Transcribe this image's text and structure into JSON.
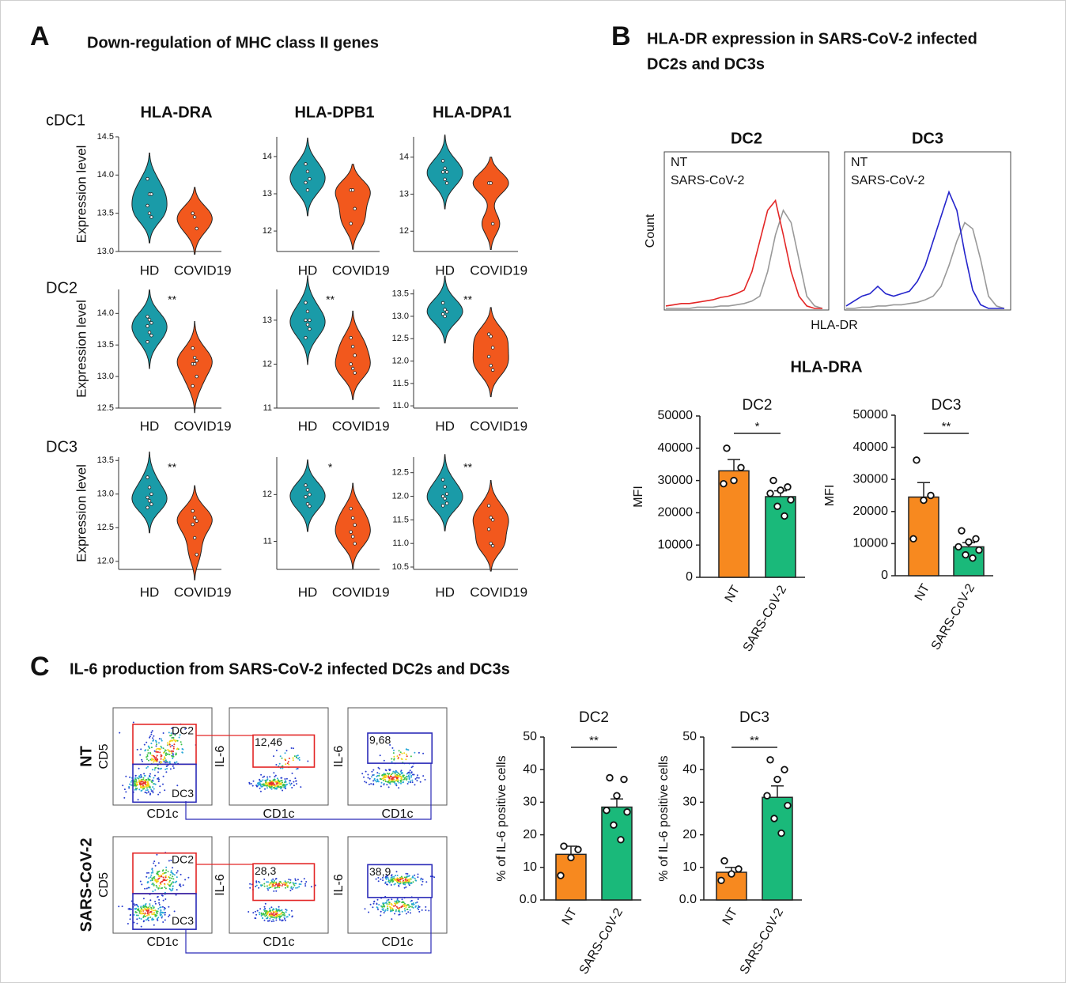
{
  "panels": [
    {
      "letter": "A",
      "title": "Down-regulation of MHC class II genes"
    },
    {
      "letter": "B",
      "title_lines": [
        "HLA-DR expression in SARS-CoV-2 infected",
        "DC2s and DC3s"
      ],
      "subtitle": "HLA-DRA",
      "xlabel": "HLA-DR"
    },
    {
      "letter": "C",
      "title": "IL-6 production from SARS-CoV-2 infected DC2s and DC3s"
    }
  ],
  "chart_data": [
    {
      "type": "violin",
      "title": "HLA-DRA",
      "row_label": "cDC1",
      "ylabel": "Expression level",
      "categories": [
        "HD",
        "COVID19"
      ],
      "colors": [
        "#1a9ba8",
        "#f2581d"
      ],
      "points": [
        [
          13.95,
          13.75,
          13.75,
          13.6,
          13.5,
          13.45
        ],
        [
          13.5,
          13.45,
          13.3
        ]
      ],
      "ylim": [
        13.0,
        14.5
      ],
      "yticks": [
        {
          "value": 13,
          "label": "13.0"
        },
        13.5,
        {
          "value": 14,
          "label": "14.0"
        },
        14.5
      ]
    },
    {
      "type": "violin",
      "title": "HLA-DPB1",
      "categories": [
        "HD",
        "COVID19"
      ],
      "colors": [
        "#1a9ba8",
        "#f2581d"
      ],
      "points": [
        [
          13.8,
          13.6,
          13.4,
          13.3,
          13.1
        ],
        [
          13.1,
          13.1,
          12.6,
          12.2
        ]
      ],
      "ylim": [
        11.45,
        14.53
      ],
      "yticks": [
        12,
        13,
        14
      ]
    },
    {
      "type": "violin",
      "title": "HLA-DPA1",
      "categories": [
        "HD",
        "COVID19"
      ],
      "colors": [
        "#1a9ba8",
        "#f2581d"
      ],
      "points": [
        [
          13.9,
          13.7,
          13.6,
          13.6,
          13.4,
          13.3
        ],
        [
          13.3,
          13.3,
          12.2
        ]
      ],
      "ylim": [
        11.45,
        14.55
      ],
      "yticks": [
        12,
        13,
        14
      ]
    },
    {
      "type": "violin",
      "row_label": "DC2",
      "ylabel": "Expression level",
      "significance": "**",
      "categories": [
        "HD",
        "COVID19"
      ],
      "colors": [
        "#1a9ba8",
        "#f2581d"
      ],
      "points": [
        [
          13.95,
          13.9,
          13.85,
          13.8,
          13.7,
          13.65,
          13.55
        ],
        [
          13.45,
          13.3,
          13.25,
          13.2,
          13.2,
          13.0,
          12.85
        ]
      ],
      "ylim": [
        12.5,
        14.38
      ],
      "yticks": [
        12.5,
        {
          "value": 13,
          "label": "13.0"
        },
        13.5,
        {
          "value": 14,
          "label": "14.0"
        }
      ]
    },
    {
      "type": "violin",
      "significance": "**",
      "categories": [
        "HD",
        "COVID19"
      ],
      "colors": [
        "#1a9ba8",
        "#f2581d"
      ],
      "points": [
        [
          13.4,
          13.2,
          13.0,
          13.0,
          12.9,
          12.8,
          12.6
        ],
        [
          12.6,
          12.4,
          12.2,
          12.0,
          11.9,
          11.8
        ]
      ],
      "ylim": [
        11,
        13.7
      ],
      "yticks": [
        11,
        12,
        13
      ]
    },
    {
      "type": "violin",
      "significance": "**",
      "categories": [
        "HD",
        "COVID19"
      ],
      "colors": [
        "#1a9ba8",
        "#f2581d"
      ],
      "points": [
        [
          13.3,
          13.15,
          13.1,
          13.05,
          13.0
        ],
        [
          12.6,
          12.55,
          12.3,
          12.1,
          11.9,
          11.8
        ]
      ],
      "ylim": [
        10.95,
        13.6
      ],
      "yticks": [
        {
          "value": 11,
          "label": "11.0"
        },
        11.5,
        {
          "value": 12,
          "label": "12.0"
        },
        12.5,
        {
          "value": 13,
          "label": "13.0"
        },
        13.5
      ]
    },
    {
      "type": "violin",
      "row_label": "DC3",
      "ylabel": "Expression level",
      "significance": "**",
      "categories": [
        "HD",
        "COVID19"
      ],
      "colors": [
        "#1a9ba8",
        "#f2581d"
      ],
      "points": [
        [
          13.25,
          13.1,
          13.0,
          12.95,
          12.9,
          12.85,
          12.8
        ],
        [
          12.75,
          12.65,
          12.6,
          12.55,
          12.35,
          12.1
        ]
      ],
      "ylim": [
        11.88,
        13.55
      ],
      "yticks": [
        {
          "value": 12,
          "label": "12.0"
        },
        12.5,
        {
          "value": 13,
          "label": "13.0"
        },
        13.5
      ]
    },
    {
      "type": "violin",
      "significance": "*",
      "categories": [
        "HD",
        "COVID19"
      ],
      "colors": [
        "#1a9ba8",
        "#f2581d"
      ],
      "points": [
        [
          12.2,
          12.1,
          12.0,
          11.95,
          11.8,
          11.75
        ],
        [
          11.7,
          11.5,
          11.35,
          11.2,
          11.1,
          10.95
        ]
      ],
      "ylim": [
        10.4,
        12.8
      ],
      "yticks": [
        11,
        12
      ]
    },
    {
      "type": "violin",
      "significance": "**",
      "categories": [
        "HD",
        "COVID19"
      ],
      "colors": [
        "#1a9ba8",
        "#f2581d"
      ],
      "points": [
        [
          12.35,
          12.2,
          12.05,
          12.0,
          11.95,
          11.85,
          11.8
        ],
        [
          11.8,
          11.55,
          11.5,
          11.3,
          11.0,
          10.95
        ]
      ],
      "ylim": [
        10.45,
        12.83
      ],
      "yticks": [
        10.5,
        {
          "value": 11,
          "label": "11.0"
        },
        11.5,
        {
          "value": 12,
          "label": "12.0"
        },
        12.5
      ]
    },
    {
      "type": "line",
      "title": "DC2",
      "ylabel": "Count",
      "x": [
        0,
        1,
        2,
        3,
        4,
        5,
        6,
        7,
        8,
        9,
        10,
        11,
        12,
        13,
        14,
        15,
        16,
        17,
        18,
        19,
        20
      ],
      "xlim": [
        0,
        20
      ],
      "ylim": [
        0,
        100
      ],
      "series": [
        {
          "name": "NT",
          "color": "#999999",
          "label_color": "#000000",
          "values": [
            0,
            0,
            0,
            0,
            1,
            1,
            1,
            2,
            2,
            3,
            4,
            6,
            10,
            30,
            60,
            80,
            70,
            40,
            10,
            2,
            0
          ]
        },
        {
          "name": "SARS-CoV-2",
          "color": "#e32626",
          "label_color": "#e32626",
          "values": [
            2,
            3,
            4,
            4,
            5,
            6,
            7,
            9,
            10,
            12,
            15,
            30,
            55,
            80,
            88,
            60,
            30,
            10,
            2,
            0,
            0
          ]
        }
      ]
    },
    {
      "type": "line",
      "title": "DC3",
      "x": [
        0,
        1,
        2,
        3,
        4,
        5,
        6,
        7,
        8,
        9,
        10,
        11,
        12,
        13,
        14,
        15,
        16,
        17,
        18,
        19,
        20
      ],
      "xlim": [
        0,
        20
      ],
      "ylim": [
        0,
        100
      ],
      "series": [
        {
          "name": "NT",
          "color": "#999999",
          "label_color": "#000000",
          "values": [
            0,
            0,
            1,
            1,
            2,
            2,
            3,
            3,
            4,
            5,
            7,
            10,
            18,
            35,
            55,
            70,
            65,
            40,
            10,
            2,
            0
          ]
        },
        {
          "name": "SARS-CoV-2",
          "color": "#2525cc",
          "label_color": "#2525cc",
          "values": [
            2,
            6,
            10,
            12,
            18,
            12,
            10,
            12,
            14,
            22,
            35,
            55,
            75,
            95,
            80,
            45,
            15,
            3,
            0,
            0,
            0
          ]
        }
      ]
    },
    {
      "type": "bar",
      "title": "DC2",
      "ylabel": "MFI",
      "significance": "*",
      "categories": [
        "NT",
        "SARS-CoV-2"
      ],
      "colors": [
        "#f7891f",
        "#1ab97a"
      ],
      "values": [
        33000,
        25000
      ],
      "errors": [
        3500,
        1800
      ],
      "points": [
        [
          40000,
          34000,
          30000,
          29000
        ],
        [
          30000,
          28000,
          27000,
          26000,
          24000,
          22000,
          19000
        ]
      ],
      "ylim": [
        0,
        50000
      ],
      "yticks": [
        0,
        10000,
        20000,
        30000,
        40000,
        50000
      ]
    },
    {
      "type": "bar",
      "title": "DC3",
      "ylabel": "MFI",
      "significance": "**",
      "categories": [
        "NT",
        "SARS-CoV-2"
      ],
      "colors": [
        "#f7891f",
        "#1ab97a"
      ],
      "values": [
        24500,
        9000
      ],
      "errors": [
        4500,
        1300
      ],
      "points": [
        [
          36000,
          25000,
          23500,
          11500
        ],
        [
          14000,
          11500,
          10500,
          9000,
          8000,
          6500,
          5500
        ]
      ],
      "ylim": [
        0,
        50000
      ],
      "yticks": [
        0,
        10000,
        20000,
        30000,
        40000,
        50000
      ]
    },
    {
      "type": "flow",
      "row_label": "NT",
      "xlabel": "CD1c",
      "ylabel": "CD5",
      "gate_labels": [
        "DC2",
        "DC3"
      ],
      "gate_colors": [
        "#e32626",
        "#2b2bb8"
      ]
    },
    {
      "type": "flow",
      "xlabel": "CD1c",
      "ylabel": "IL-6",
      "values": [
        12.46
      ],
      "value_labels": [
        "12,46"
      ],
      "gate_color": "#e32626"
    },
    {
      "type": "flow",
      "xlabel": "CD1c",
      "ylabel": "IL-6",
      "values": [
        9.68
      ],
      "value_labels": [
        "9,68"
      ],
      "gate_color": "#2b2bb8"
    },
    {
      "type": "flow",
      "row_label": "SARS-CoV-2",
      "xlabel": "CD1c",
      "ylabel": "CD5",
      "gate_labels": [
        "DC2",
        "DC3"
      ],
      "gate_colors": [
        "#e32626",
        "#2b2bb8"
      ]
    },
    {
      "type": "flow",
      "xlabel": "CD1c",
      "ylabel": "IL-6",
      "values": [
        28.3
      ],
      "value_labels": [
        "28,3"
      ],
      "gate_color": "#e32626"
    },
    {
      "type": "flow",
      "xlabel": "CD1c",
      "ylabel": "IL-6",
      "values": [
        38.9
      ],
      "value_labels": [
        "38,9"
      ],
      "gate_color": "#2b2bb8"
    },
    {
      "type": "bar",
      "title": "DC2",
      "ylabel": "% of IL-6 positive cells",
      "significance": "**",
      "categories": [
        "NT",
        "SARS-CoV-2"
      ],
      "colors": [
        "#f7891f",
        "#1ab97a"
      ],
      "values": [
        14,
        28.5
      ],
      "errors": [
        2.5,
        2.5
      ],
      "points": [
        [
          16.5,
          15.5,
          13,
          7.5
        ],
        [
          37.5,
          37,
          32,
          27.5,
          27,
          23,
          18.5
        ]
      ],
      "ylim": [
        0,
        50
      ],
      "yticks": [
        {
          "value": 0,
          "label": "0.0"
        },
        10,
        20,
        30,
        40,
        50
      ]
    },
    {
      "type": "bar",
      "title": "DC3",
      "ylabel": "% of IL-6 positive cells",
      "significance": "**",
      "categories": [
        "NT",
        "SARS-CoV-2"
      ],
      "colors": [
        "#f7891f",
        "#1ab97a"
      ],
      "values": [
        8.5,
        31.5
      ],
      "errors": [
        1.5,
        3.5
      ],
      "points": [
        [
          12,
          9.5,
          8,
          6
        ],
        [
          43,
          40,
          37,
          32,
          29,
          25,
          20.5
        ]
      ],
      "ylim": [
        0,
        50
      ],
      "yticks": [
        {
          "value": 0,
          "label": "0.0"
        },
        10,
        20,
        30,
        40,
        50
      ]
    }
  ]
}
